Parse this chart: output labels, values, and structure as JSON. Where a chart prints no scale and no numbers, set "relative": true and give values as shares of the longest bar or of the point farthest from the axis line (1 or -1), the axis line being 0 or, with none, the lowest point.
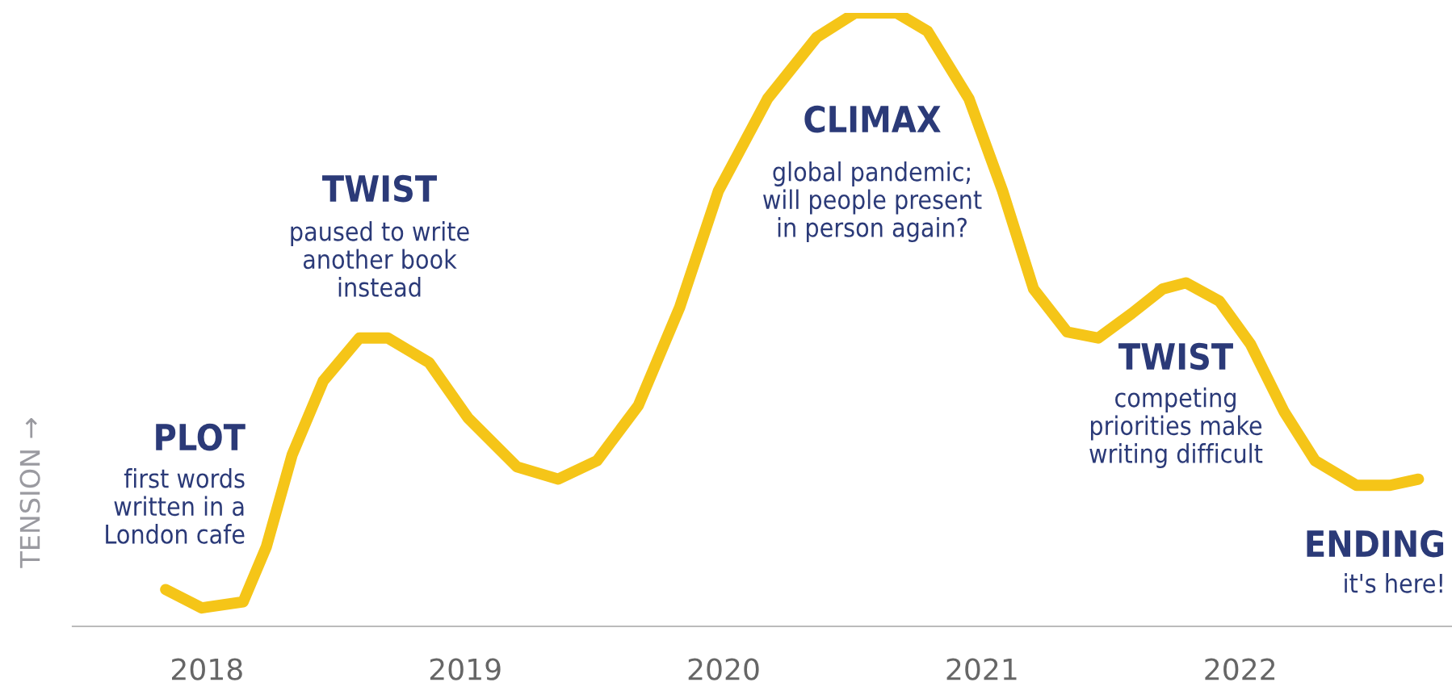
{
  "chart_data": {
    "type": "line",
    "relative": true,
    "ylabel": "TENSION →",
    "x": [
      2017.84,
      2017.98,
      2018.14,
      2018.23,
      2018.33,
      2018.45,
      2018.59,
      2018.7,
      2018.86,
      2019.01,
      2019.2,
      2019.36,
      2019.51,
      2019.67,
      2019.83,
      2019.98,
      2020.17,
      2020.36,
      2020.51,
      2020.67,
      2020.79,
      2020.95,
      2021.08,
      2021.2,
      2021.33,
      2021.45,
      2021.58,
      2021.7,
      2021.79,
      2021.92,
      2022.04,
      2022.17,
      2022.29,
      2022.45,
      2022.58,
      2022.69
    ],
    "series": [
      {
        "color": "#f5c518",
        "values": [
          0.06,
          0.03,
          0.04,
          0.13,
          0.28,
          0.4,
          0.47,
          0.47,
          0.43,
          0.34,
          0.26,
          0.24,
          0.27,
          0.36,
          0.52,
          0.71,
          0.86,
          0.96,
          1.0,
          1.0,
          0.97,
          0.86,
          0.71,
          0.55,
          0.48,
          0.47,
          0.51,
          0.55,
          0.56,
          0.53,
          0.46,
          0.35,
          0.27,
          0.23,
          0.23,
          0.24
        ]
      }
    ],
    "xlim": [
      2017.48,
      2022.82
    ],
    "xticks": [
      2018,
      2019,
      2020,
      2021,
      2022
    ],
    "grid": false,
    "marker": "none",
    "line_style": "solid",
    "annotations": [
      "PLOT",
      "first words\nwritten in a\nLondon cafe",
      "TWIST",
      "paused to write\nanother book\ninstead",
      "CLIMAX",
      "global pandemic;\nwill people present\nin person again?",
      "TWIST",
      "competing\npriorities make\nwriting difficult",
      "ENDING",
      "it's here!"
    ]
  }
}
